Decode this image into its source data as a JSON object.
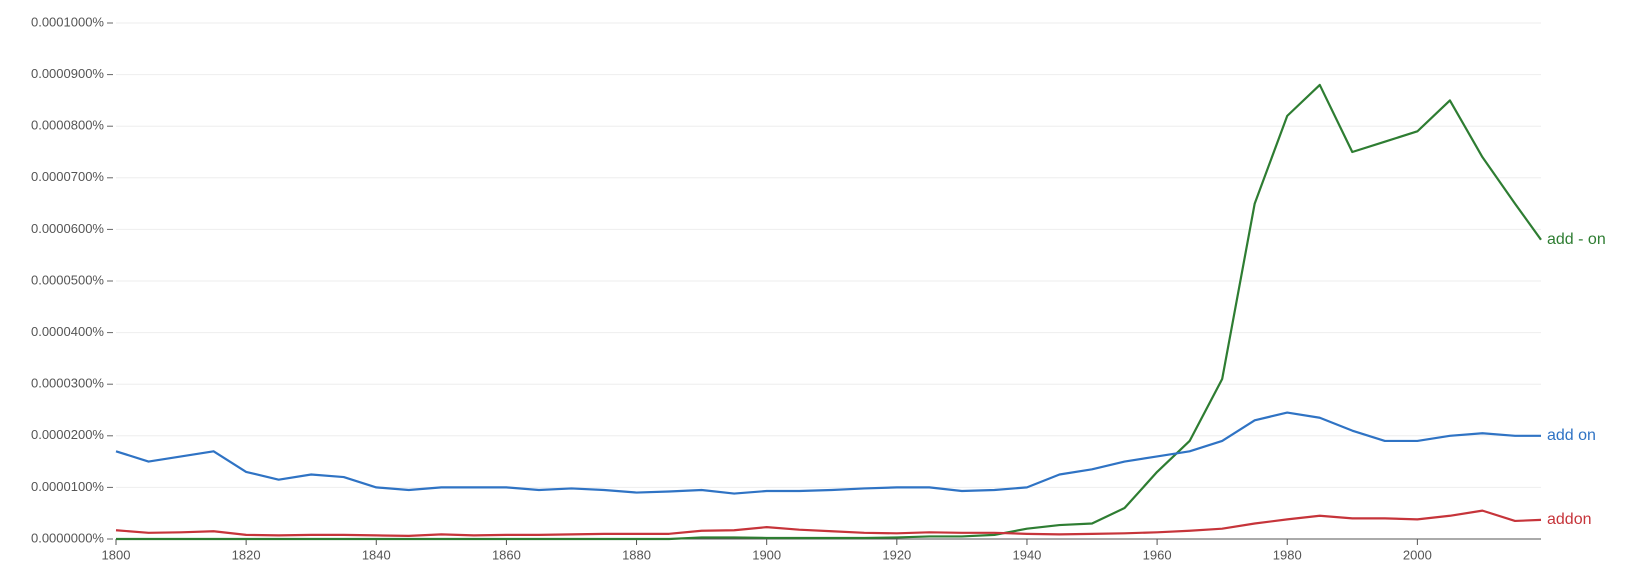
{
  "chart_data": {
    "type": "line",
    "x": [
      1800,
      1805,
      1810,
      1815,
      1820,
      1825,
      1830,
      1835,
      1840,
      1845,
      1850,
      1855,
      1860,
      1865,
      1870,
      1875,
      1880,
      1885,
      1890,
      1895,
      1900,
      1905,
      1910,
      1915,
      1920,
      1925,
      1930,
      1935,
      1940,
      1945,
      1950,
      1955,
      1960,
      1965,
      1970,
      1975,
      1980,
      1985,
      1990,
      1995,
      2000,
      2005,
      2010,
      2015,
      2019
    ],
    "xlim": [
      1800,
      2019
    ],
    "xticks": [
      1800,
      1820,
      1840,
      1860,
      1880,
      1900,
      1920,
      1940,
      1960,
      1980,
      2000
    ],
    "ylim": [
      0,
      0.0001
    ],
    "yticks": [
      {
        "value": 0,
        "label": "0.0000000%"
      },
      {
        "value": 1e-05,
        "label": "0.0000100%"
      },
      {
        "value": 2e-05,
        "label": "0.0000200%"
      },
      {
        "value": 3e-05,
        "label": "0.0000300%"
      },
      {
        "value": 4e-05,
        "label": "0.0000400%"
      },
      {
        "value": 5e-05,
        "label": "0.0000500%"
      },
      {
        "value": 6e-05,
        "label": "0.0000600%"
      },
      {
        "value": 7e-05,
        "label": "0.0000700%"
      },
      {
        "value": 8e-05,
        "label": "0.0000800%"
      },
      {
        "value": 9e-05,
        "label": "0.0000900%"
      },
      {
        "value": 0.0001,
        "label": "0.0001000%"
      }
    ],
    "grid": true,
    "series": [
      {
        "name": "add - on",
        "color": "#2e7d32",
        "values": [
          0,
          0,
          0,
          0,
          0,
          0,
          0,
          0,
          0,
          0,
          0,
          0,
          0,
          0,
          0,
          0,
          0,
          0,
          3e-07,
          3e-07,
          2e-07,
          2e-07,
          2e-07,
          2e-07,
          3e-07,
          5e-07,
          5e-07,
          8e-07,
          2e-06,
          2.7e-06,
          3e-06,
          6e-06,
          1.3e-05,
          1.9e-05,
          3.1e-05,
          6.5e-05,
          8.2e-05,
          8.8e-05,
          7.5e-05,
          7.7e-05,
          7.9e-05,
          8.5e-05,
          7.4e-05,
          6.5e-05,
          5.8e-05
        ]
      },
      {
        "name": "add on",
        "color": "#2f73c4",
        "values": [
          1.7e-05,
          1.5e-05,
          1.6e-05,
          1.7e-05,
          1.3e-05,
          1.15e-05,
          1.25e-05,
          1.2e-05,
          1e-05,
          9.5e-06,
          1e-05,
          1e-05,
          1e-05,
          9.5e-06,
          9.8e-06,
          9.5e-06,
          9e-06,
          9.2e-06,
          9.5e-06,
          8.8e-06,
          9.3e-06,
          9.3e-06,
          9.5e-06,
          9.8e-06,
          1e-05,
          1e-05,
          9.3e-06,
          9.5e-06,
          1e-05,
          1.25e-05,
          1.35e-05,
          1.5e-05,
          1.6e-05,
          1.7e-05,
          1.9e-05,
          2.3e-05,
          2.45e-05,
          2.35e-05,
          2.1e-05,
          1.9e-05,
          1.9e-05,
          2e-05,
          2.05e-05,
          2e-05,
          2e-05
        ]
      },
      {
        "name": "addon",
        "color": "#c6343a",
        "values": [
          1.7e-06,
          1.2e-06,
          1.3e-06,
          1.5e-06,
          8e-07,
          7e-07,
          8e-07,
          8e-07,
          7e-07,
          6e-07,
          9e-07,
          7e-07,
          8e-07,
          8e-07,
          9e-07,
          1e-06,
          1e-06,
          1e-06,
          1.6e-06,
          1.7e-06,
          2.3e-06,
          1.8e-06,
          1.5e-06,
          1.2e-06,
          1.1e-06,
          1.3e-06,
          1.2e-06,
          1.2e-06,
          1e-06,
          9e-07,
          1e-06,
          1.1e-06,
          1.3e-06,
          1.6e-06,
          2e-06,
          3e-06,
          3.8e-06,
          4.5e-06,
          4e-06,
          4e-06,
          3.8e-06,
          4.5e-06,
          5.5e-06,
          3.5e-06,
          3.7e-06
        ]
      }
    ]
  }
}
